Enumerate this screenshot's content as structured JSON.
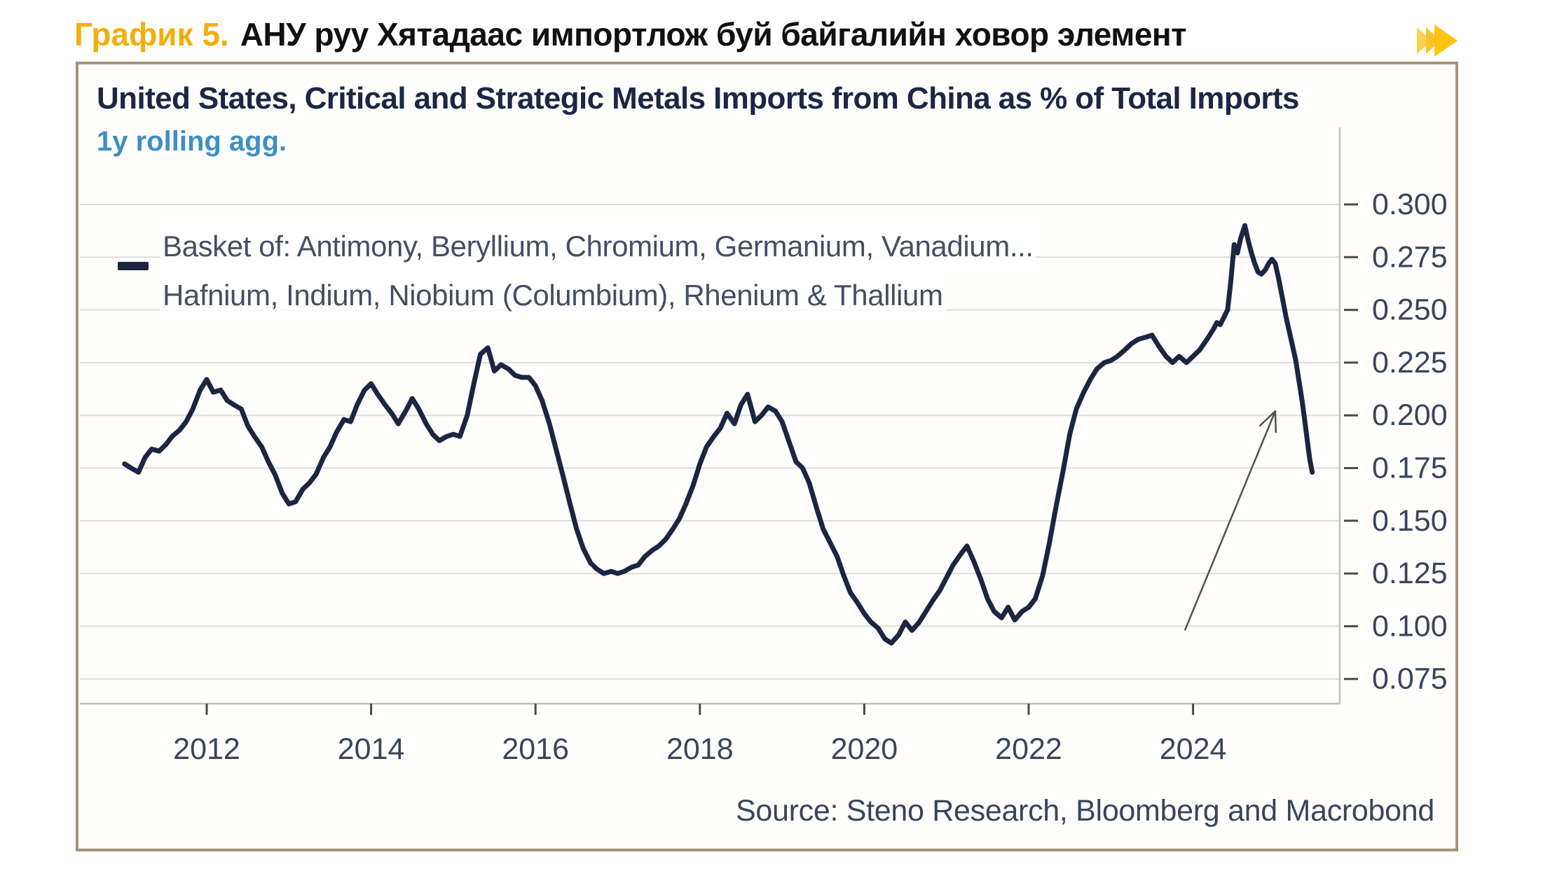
{
  "header": {
    "figure_label": "График 5.",
    "title": "АНУ руу Хятадаас импортлож буй байгалийн ховор элемент",
    "accent_color": "#F4AE0C",
    "icon": "fast-forward-icon"
  },
  "chart": {
    "title": "United States, Critical and Strategic Metals Imports from China as % of Total Imports",
    "subtitle": "1y rolling agg.",
    "legend_line1": "Basket of: Antimony, Beryllium, Chromium, Germanium, Vanadium...",
    "legend_line2": "Hafnium, Indium, Niobium (Columbium), Rhenium & Thallium",
    "source": "Source: Steno Research, Bloomberg and Macrobond",
    "colors": {
      "line": "#1C2541",
      "title": "#1B2744",
      "subtitle": "#3D8FC6",
      "grid": "#DBDBD9",
      "axis": "#BDBDBB",
      "tick": "#4A4A4A",
      "tick_label": "#3A455B",
      "card_border": "#A59478",
      "arrow": "#51514A",
      "header_accent": "#F4AE0C",
      "icon_front": "#FFC40D",
      "icon_back": "#FCD34F",
      "icon_mid": "#FBC42E"
    }
  },
  "chart_data": {
    "type": "line",
    "title": "United States, Critical and Strategic Metals Imports from China as % of Total Imports",
    "subtitle": "1y rolling agg.",
    "xlabel": "",
    "ylabel": "",
    "grid": true,
    "legend_position": "top-left",
    "x_ticks": [
      2012,
      2014,
      2016,
      2018,
      2020,
      2022,
      2024
    ],
    "y_tick_labels": [
      "0.300",
      "0.275",
      "0.250",
      "0.225",
      "0.200",
      "0.175",
      "0.150",
      "0.125",
      "0.100",
      "0.075"
    ],
    "ylim": [
      0.075,
      0.3
    ],
    "x_range": [
      2011.0,
      2025.45
    ],
    "series": [
      {
        "name": "Basket of: Antimony, Beryllium, Chromium, Germanium, Vanadium... Hafnium, Indium, Niobium (Columbium), Rhenium & Thallium",
        "color": "#1C2541",
        "points": [
          [
            2011.0,
            0.177
          ],
          [
            2011.08,
            0.175
          ],
          [
            2011.17,
            0.173
          ],
          [
            2011.25,
            0.18
          ],
          [
            2011.33,
            0.184
          ],
          [
            2011.42,
            0.183
          ],
          [
            2011.5,
            0.186
          ],
          [
            2011.58,
            0.19
          ],
          [
            2011.67,
            0.193
          ],
          [
            2011.75,
            0.197
          ],
          [
            2011.83,
            0.203
          ],
          [
            2011.92,
            0.212
          ],
          [
            2012.0,
            0.217
          ],
          [
            2012.08,
            0.211
          ],
          [
            2012.17,
            0.212
          ],
          [
            2012.25,
            0.207
          ],
          [
            2012.33,
            0.205
          ],
          [
            2012.42,
            0.203
          ],
          [
            2012.5,
            0.195
          ],
          [
            2012.58,
            0.19
          ],
          [
            2012.67,
            0.185
          ],
          [
            2012.75,
            0.178
          ],
          [
            2012.83,
            0.172
          ],
          [
            2012.92,
            0.163
          ],
          [
            2013.0,
            0.158
          ],
          [
            2013.08,
            0.159
          ],
          [
            2013.17,
            0.165
          ],
          [
            2013.25,
            0.168
          ],
          [
            2013.33,
            0.172
          ],
          [
            2013.42,
            0.18
          ],
          [
            2013.5,
            0.185
          ],
          [
            2013.58,
            0.192
          ],
          [
            2013.67,
            0.198
          ],
          [
            2013.75,
            0.197
          ],
          [
            2013.83,
            0.205
          ],
          [
            2013.92,
            0.212
          ],
          [
            2014.0,
            0.215
          ],
          [
            2014.08,
            0.21
          ],
          [
            2014.17,
            0.205
          ],
          [
            2014.25,
            0.201
          ],
          [
            2014.33,
            0.196
          ],
          [
            2014.42,
            0.202
          ],
          [
            2014.5,
            0.208
          ],
          [
            2014.58,
            0.203
          ],
          [
            2014.67,
            0.196
          ],
          [
            2014.75,
            0.191
          ],
          [
            2014.83,
            0.188
          ],
          [
            2014.92,
            0.19
          ],
          [
            2015.0,
            0.191
          ],
          [
            2015.08,
            0.19
          ],
          [
            2015.17,
            0.2
          ],
          [
            2015.25,
            0.215
          ],
          [
            2015.33,
            0.229
          ],
          [
            2015.42,
            0.232
          ],
          [
            2015.5,
            0.221
          ],
          [
            2015.58,
            0.224
          ],
          [
            2015.67,
            0.222
          ],
          [
            2015.75,
            0.219
          ],
          [
            2015.83,
            0.218
          ],
          [
            2015.92,
            0.218
          ],
          [
            2016.0,
            0.214
          ],
          [
            2016.08,
            0.207
          ],
          [
            2016.17,
            0.196
          ],
          [
            2016.25,
            0.184
          ],
          [
            2016.33,
            0.172
          ],
          [
            2016.42,
            0.158
          ],
          [
            2016.5,
            0.146
          ],
          [
            2016.58,
            0.137
          ],
          [
            2016.67,
            0.13
          ],
          [
            2016.75,
            0.127
          ],
          [
            2016.83,
            0.125
          ],
          [
            2016.92,
            0.126
          ],
          [
            2017.0,
            0.125
          ],
          [
            2017.08,
            0.126
          ],
          [
            2017.17,
            0.128
          ],
          [
            2017.25,
            0.129
          ],
          [
            2017.33,
            0.133
          ],
          [
            2017.42,
            0.136
          ],
          [
            2017.5,
            0.138
          ],
          [
            2017.58,
            0.141
          ],
          [
            2017.67,
            0.146
          ],
          [
            2017.75,
            0.151
          ],
          [
            2017.83,
            0.158
          ],
          [
            2017.92,
            0.167
          ],
          [
            2018.0,
            0.177
          ],
          [
            2018.08,
            0.185
          ],
          [
            2018.17,
            0.19
          ],
          [
            2018.25,
            0.194
          ],
          [
            2018.33,
            0.201
          ],
          [
            2018.42,
            0.196
          ],
          [
            2018.5,
            0.205
          ],
          [
            2018.58,
            0.21
          ],
          [
            2018.67,
            0.197
          ],
          [
            2018.75,
            0.2
          ],
          [
            2018.83,
            0.204
          ],
          [
            2018.92,
            0.202
          ],
          [
            2019.0,
            0.197
          ],
          [
            2019.08,
            0.188
          ],
          [
            2019.17,
            0.178
          ],
          [
            2019.25,
            0.175
          ],
          [
            2019.33,
            0.168
          ],
          [
            2019.42,
            0.156
          ],
          [
            2019.5,
            0.146
          ],
          [
            2019.58,
            0.14
          ],
          [
            2019.67,
            0.133
          ],
          [
            2019.75,
            0.124
          ],
          [
            2019.83,
            0.116
          ],
          [
            2019.92,
            0.111
          ],
          [
            2020.0,
            0.106
          ],
          [
            2020.08,
            0.102
          ],
          [
            2020.17,
            0.099
          ],
          [
            2020.25,
            0.094
          ],
          [
            2020.33,
            0.092
          ],
          [
            2020.42,
            0.096
          ],
          [
            2020.5,
            0.102
          ],
          [
            2020.58,
            0.098
          ],
          [
            2020.67,
            0.102
          ],
          [
            2020.75,
            0.107
          ],
          [
            2020.83,
            0.112
          ],
          [
            2020.92,
            0.117
          ],
          [
            2021.0,
            0.123
          ],
          [
            2021.08,
            0.129
          ],
          [
            2021.17,
            0.134
          ],
          [
            2021.25,
            0.138
          ],
          [
            2021.33,
            0.131
          ],
          [
            2021.42,
            0.122
          ],
          [
            2021.5,
            0.113
          ],
          [
            2021.58,
            0.107
          ],
          [
            2021.67,
            0.104
          ],
          [
            2021.75,
            0.109
          ],
          [
            2021.83,
            0.103
          ],
          [
            2021.92,
            0.107
          ],
          [
            2022.0,
            0.109
          ],
          [
            2022.08,
            0.113
          ],
          [
            2022.17,
            0.124
          ],
          [
            2022.25,
            0.139
          ],
          [
            2022.33,
            0.156
          ],
          [
            2022.42,
            0.174
          ],
          [
            2022.5,
            0.191
          ],
          [
            2022.58,
            0.203
          ],
          [
            2022.67,
            0.211
          ],
          [
            2022.75,
            0.217
          ],
          [
            2022.83,
            0.222
          ],
          [
            2022.92,
            0.225
          ],
          [
            2023.0,
            0.226
          ],
          [
            2023.08,
            0.228
          ],
          [
            2023.17,
            0.231
          ],
          [
            2023.25,
            0.234
          ],
          [
            2023.33,
            0.236
          ],
          [
            2023.42,
            0.237
          ],
          [
            2023.5,
            0.238
          ],
          [
            2023.58,
            0.233
          ],
          [
            2023.67,
            0.228
          ],
          [
            2023.75,
            0.225
          ],
          [
            2023.83,
            0.228
          ],
          [
            2023.92,
            0.225
          ],
          [
            2024.0,
            0.228
          ],
          [
            2024.08,
            0.231
          ],
          [
            2024.17,
            0.236
          ],
          [
            2024.25,
            0.241
          ],
          [
            2024.29,
            0.244
          ],
          [
            2024.33,
            0.243
          ],
          [
            2024.42,
            0.25
          ],
          [
            2024.46,
            0.264
          ],
          [
            2024.5,
            0.281
          ],
          [
            2024.54,
            0.277
          ],
          [
            2024.58,
            0.284
          ],
          [
            2024.63,
            0.29
          ],
          [
            2024.67,
            0.283
          ],
          [
            2024.71,
            0.277
          ],
          [
            2024.75,
            0.272
          ],
          [
            2024.79,
            0.268
          ],
          [
            2024.83,
            0.267
          ],
          [
            2024.88,
            0.269
          ],
          [
            2024.92,
            0.272
          ],
          [
            2024.96,
            0.274
          ],
          [
            2025.0,
            0.272
          ],
          [
            2025.04,
            0.265
          ],
          [
            2025.08,
            0.257
          ],
          [
            2025.13,
            0.247
          ],
          [
            2025.17,
            0.24
          ],
          [
            2025.21,
            0.233
          ],
          [
            2025.25,
            0.226
          ],
          [
            2025.29,
            0.216
          ],
          [
            2025.33,
            0.206
          ],
          [
            2025.38,
            0.191
          ],
          [
            2025.42,
            0.179
          ],
          [
            2025.45,
            0.173
          ]
        ]
      }
    ],
    "annotation_arrow": {
      "from": [
        2023.9,
        0.098
      ],
      "to": [
        2025.0,
        0.202
      ]
    }
  }
}
